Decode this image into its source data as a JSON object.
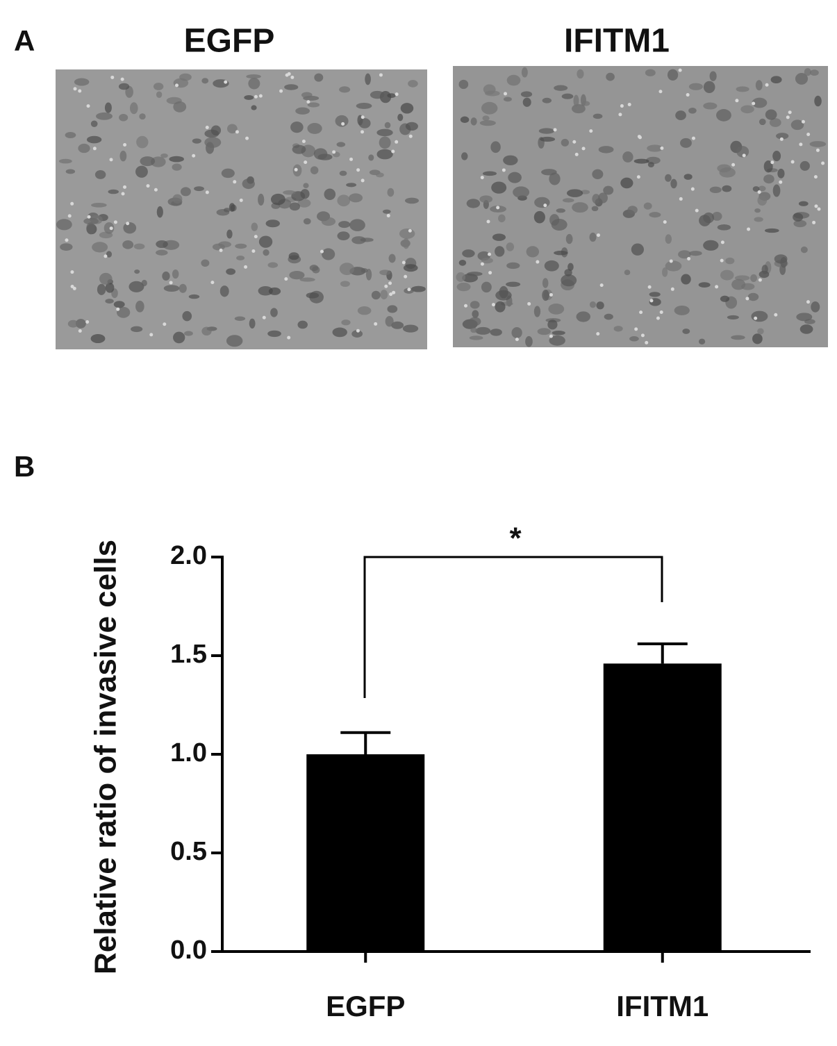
{
  "panel_a": {
    "label": "A",
    "images": [
      {
        "title": "EGFP"
      },
      {
        "title": "IFITM1"
      }
    ]
  },
  "chart_data": {
    "type": "bar",
    "panel_label": "B",
    "ylabel": "Relative ratio of invasive cells",
    "categories": [
      "EGFP",
      "IFITM1"
    ],
    "values": [
      1.0,
      1.46
    ],
    "errors": [
      0.11,
      0.1
    ],
    "color": "#000000",
    "ylim": [
      0,
      2
    ],
    "yticks": [
      {
        "value": 0,
        "label": "0.0"
      },
      0.5,
      {
        "value": 1,
        "label": "1.0"
      },
      1.5,
      {
        "value": 2,
        "label": "2.0"
      }
    ],
    "grid": false,
    "annotation": "*"
  }
}
